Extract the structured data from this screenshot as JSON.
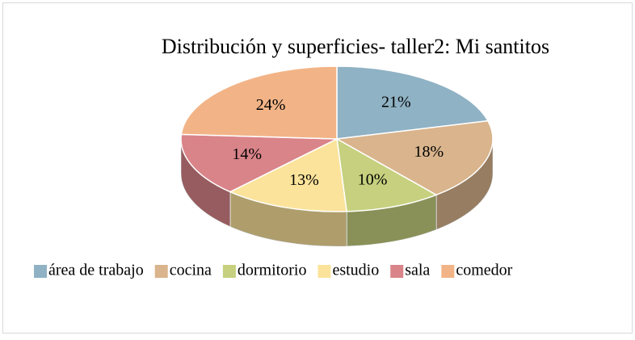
{
  "chart_data": {
    "type": "pie",
    "title": "Distribución y superficies- taller2: Mi santitos",
    "categories": [
      "área de trabajo",
      "cocina",
      "dormitorio",
      "estudio",
      "sala",
      "comedor"
    ],
    "values": [
      21,
      18,
      10,
      13,
      14,
      24
    ],
    "value_labels": [
      "21%",
      "18%",
      "10%",
      "13%",
      "14%",
      "24%"
    ],
    "colors": [
      "#8fb2c4",
      "#d9b48c",
      "#c6d07e",
      "#fbe39b",
      "#d98489",
      "#f2b487"
    ],
    "legend": "bottom"
  }
}
